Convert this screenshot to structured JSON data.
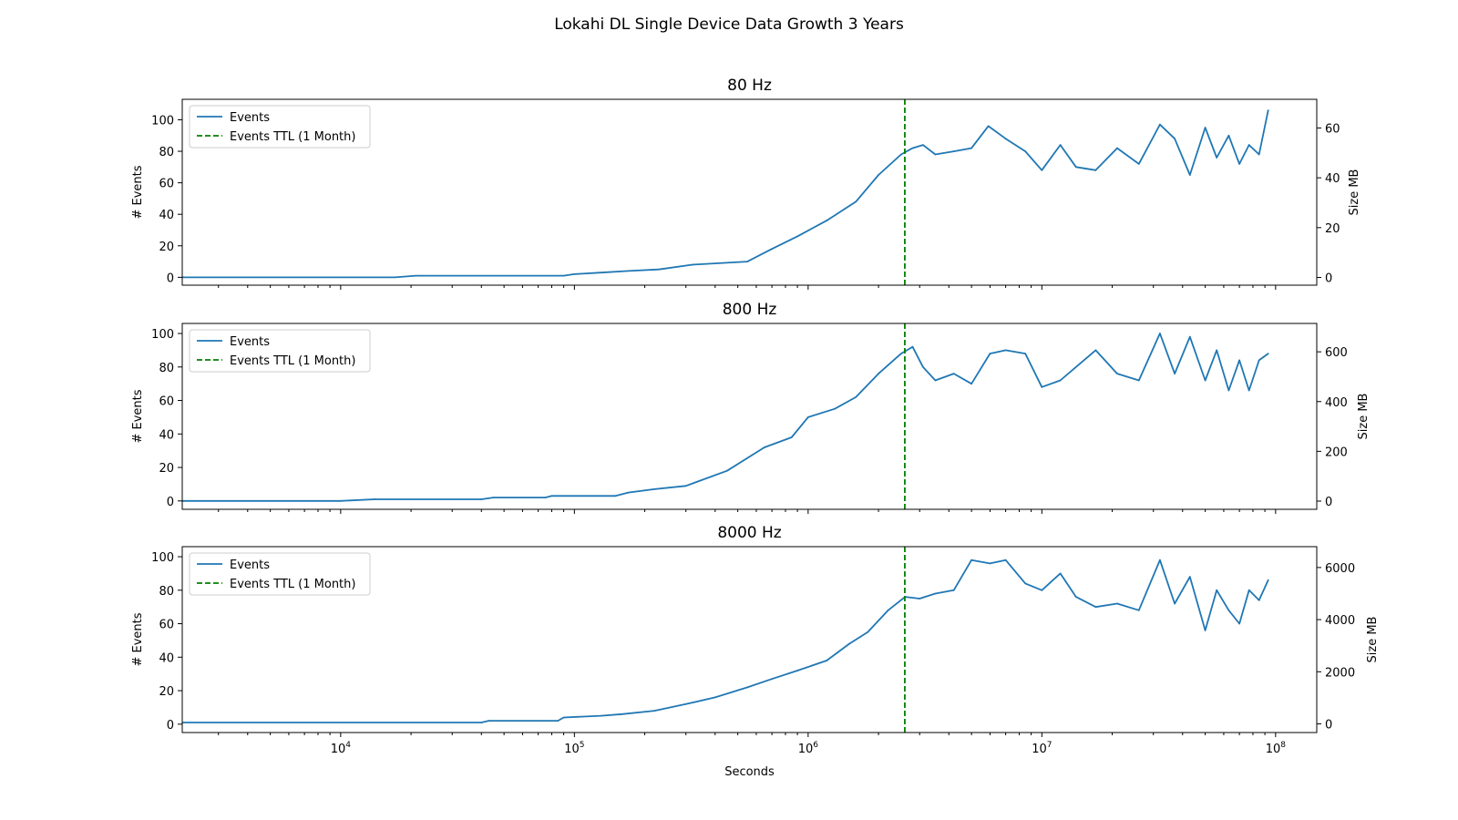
{
  "figure_title": "Lokahi DL Single Device Data Growth 3 Years",
  "colors": {
    "events": "#1f77b4",
    "ttl": "#008000",
    "axes": "#000000",
    "background": "#ffffff"
  },
  "chart_data": [
    {
      "type": "line",
      "title": "80 Hz",
      "xlabel": "",
      "ylabel": "# Events",
      "y2label": "Size MB",
      "xscale": "log",
      "xlim": [
        2100,
        150000000
      ],
      "ylim": [
        -5,
        113
      ],
      "y2lim": [
        -3.1,
        71.5
      ],
      "yticks": [
        0,
        20,
        40,
        60,
        80,
        100
      ],
      "y2ticks": [
        0,
        20,
        40,
        60
      ],
      "xticks": [
        10000,
        100000,
        1000000,
        10000000,
        100000000
      ],
      "xtick_labels": [
        "10",
        "10",
        "10",
        "10",
        "10"
      ],
      "xtick_exponents": [
        "4",
        "5",
        "6",
        "7",
        "8"
      ],
      "show_xtick_labels": false,
      "legend": {
        "position": "upper left",
        "entries": [
          "Events",
          "Events TTL (1 Month)"
        ]
      },
      "ttl_x": 2592000,
      "series": [
        {
          "name": "Events",
          "style": "solid",
          "x": [
            2100,
            17000,
            21000,
            90000,
            100000,
            130000,
            170000,
            230000,
            320000,
            550000,
            700000,
            900000,
            1200000,
            1600000,
            2000000,
            2500000,
            2800000,
            3100000,
            3500000,
            4200000,
            5000000,
            5900000,
            7000000,
            8500000,
            10000000,
            12000000,
            14000000,
            17000000,
            21000000,
            26000000,
            32000000,
            37000000,
            43000000,
            50000000,
            56000000,
            63000000,
            70000000,
            77000000,
            85000000,
            93000000
          ],
          "y": [
            0,
            0,
            1,
            1,
            2,
            3,
            4,
            5,
            8,
            10,
            18,
            26,
            36,
            48,
            65,
            78,
            82,
            84,
            78,
            80,
            82,
            96,
            88,
            80,
            68,
            84,
            70,
            68,
            82,
            72,
            97,
            88,
            65,
            95,
            76,
            90,
            72,
            84,
            78,
            106
          ]
        }
      ]
    },
    {
      "type": "line",
      "title": "800 Hz",
      "xlabel": "",
      "ylabel": "# Events",
      "y2label": "Size MB",
      "xscale": "log",
      "xlim": [
        2100,
        150000000
      ],
      "ylim": [
        -5,
        106
      ],
      "y2lim": [
        -33,
        714
      ],
      "yticks": [
        0,
        20,
        40,
        60,
        80,
        100
      ],
      "y2ticks": [
        0,
        200,
        400,
        600
      ],
      "xticks": [
        10000,
        100000,
        1000000,
        10000000,
        100000000
      ],
      "xtick_labels": [
        "10",
        "10",
        "10",
        "10",
        "10"
      ],
      "xtick_exponents": [
        "4",
        "5",
        "6",
        "7",
        "8"
      ],
      "show_xtick_labels": false,
      "legend": {
        "position": "upper left",
        "entries": [
          "Events",
          "Events TTL (1 Month)"
        ]
      },
      "ttl_x": 2592000,
      "series": [
        {
          "name": "Events",
          "style": "solid",
          "x": [
            2100,
            10000,
            14000,
            40000,
            45000,
            75000,
            80000,
            150000,
            170000,
            220000,
            300000,
            450000,
            650000,
            850000,
            1000000,
            1300000,
            1600000,
            2000000,
            2500000,
            2800000,
            3100000,
            3500000,
            4200000,
            5000000,
            6000000,
            7000000,
            8500000,
            10000000,
            12000000,
            14000000,
            17000000,
            21000000,
            26000000,
            32000000,
            37000000,
            43000000,
            50000000,
            56000000,
            63000000,
            70000000,
            77000000,
            85000000,
            93000000
          ],
          "y": [
            0,
            0,
            1,
            1,
            2,
            2,
            3,
            3,
            5,
            7,
            9,
            18,
            32,
            38,
            50,
            55,
            62,
            76,
            88,
            92,
            80,
            72,
            76,
            70,
            88,
            90,
            88,
            68,
            72,
            80,
            90,
            76,
            72,
            100,
            76,
            98,
            72,
            90,
            66,
            84,
            66,
            84,
            88
          ]
        }
      ]
    },
    {
      "type": "line",
      "title": "8000 Hz",
      "xlabel": "Seconds",
      "ylabel": "# Events",
      "y2label": "Size MB",
      "xscale": "log",
      "xlim": [
        2100,
        150000000
      ],
      "ylim": [
        -5,
        106
      ],
      "y2lim": [
        -333,
        6800
      ],
      "yticks": [
        0,
        20,
        40,
        60,
        80,
        100
      ],
      "y2ticks": [
        0,
        2000,
        4000,
        6000
      ],
      "xticks": [
        10000,
        100000,
        1000000,
        10000000,
        100000000
      ],
      "xtick_labels": [
        "10",
        "10",
        "10",
        "10",
        "10"
      ],
      "xtick_exponents": [
        "4",
        "5",
        "6",
        "7",
        "8"
      ],
      "show_xtick_labels": true,
      "legend": {
        "position": "upper left",
        "entries": [
          "Events",
          "Events TTL (1 Month)"
        ]
      },
      "ttl_x": 2592000,
      "series": [
        {
          "name": "Events",
          "style": "solid",
          "x": [
            2100,
            40000,
            43000,
            85000,
            90000,
            130000,
            160000,
            220000,
            300000,
            400000,
            550000,
            700000,
            900000,
            1200000,
            1500000,
            1800000,
            2200000,
            2600000,
            3000000,
            3500000,
            4200000,
            5000000,
            6000000,
            7000000,
            8500000,
            10000000,
            12000000,
            14000000,
            17000000,
            21000000,
            26000000,
            32000000,
            37000000,
            43000000,
            50000000,
            56000000,
            63000000,
            70000000,
            77000000,
            85000000,
            93000000
          ],
          "y": [
            1,
            1,
            2,
            2,
            4,
            5,
            6,
            8,
            12,
            16,
            22,
            27,
            32,
            38,
            48,
            55,
            68,
            76,
            75,
            78,
            80,
            98,
            96,
            98,
            84,
            80,
            90,
            76,
            70,
            72,
            68,
            98,
            72,
            88,
            56,
            80,
            68,
            60,
            80,
            74,
            86
          ]
        }
      ]
    }
  ]
}
